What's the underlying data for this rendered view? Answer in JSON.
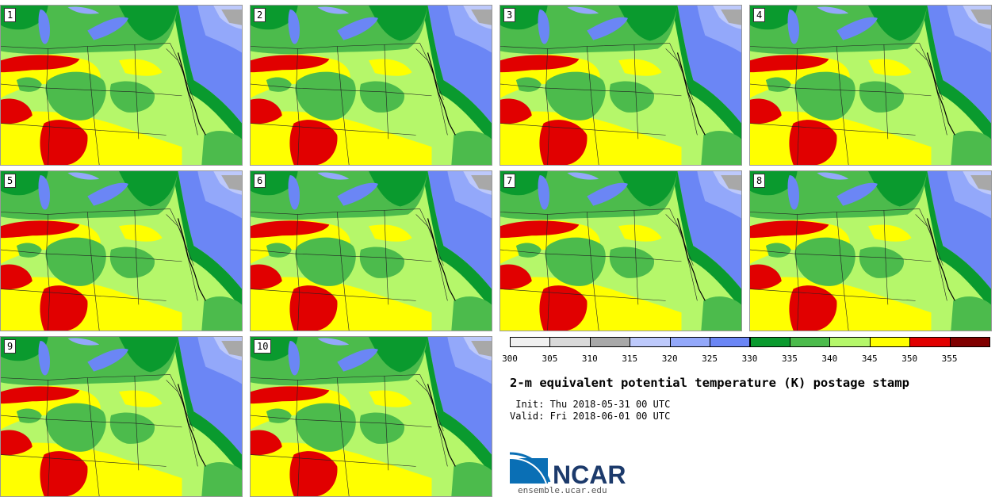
{
  "panels": [
    {
      "label": "1"
    },
    {
      "label": "2"
    },
    {
      "label": "3"
    },
    {
      "label": "4"
    },
    {
      "label": "5"
    },
    {
      "label": "6"
    },
    {
      "label": "7"
    },
    {
      "label": "8"
    },
    {
      "label": "9"
    },
    {
      "label": "10"
    }
  ],
  "legend": {
    "colors": [
      "#f0f0f0",
      "#d9d9d9",
      "#a8a8a8",
      "#bdc9fb",
      "#93a8fa",
      "#6b86f5",
      "#0a9a2e",
      "#4cbb4c",
      "#b5f76a",
      "#ffff00",
      "#e10000",
      "#800000"
    ],
    "ticks": [
      "300",
      "305",
      "310",
      "315",
      "320",
      "325",
      "330",
      "335",
      "340",
      "345",
      "350",
      "355"
    ]
  },
  "title": "2-m equivalent potential temperature (K) postage stamp",
  "init": " Init: Thu 2018-05-31 00 UTC",
  "valid": "Valid: Fri 2018-06-01 00 UTC",
  "logo": {
    "text": "NCAR",
    "url": "ensemble.ucar.edu"
  }
}
